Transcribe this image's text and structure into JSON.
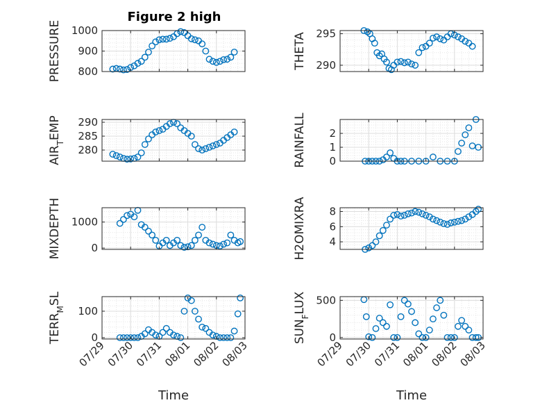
{
  "figure": {
    "title": "Figure 2 high",
    "marker_color": "#0072BD",
    "axis_color": "#262626"
  },
  "chart_data": [
    {
      "type": "scatter",
      "ylabel": "PRESSURE",
      "ylim": [
        800,
        1000
      ],
      "yticks": [
        800,
        900,
        1000
      ],
      "xlim": [
        "07/29",
        "08/03"
      ],
      "xticks": [
        "07/29",
        "07/30",
        "07/31",
        "08/01",
        "08/02",
        "08/03"
      ],
      "xtick_labels_visible": false,
      "grid": true,
      "x": [
        "07/29 09:00",
        "07/29 12:00",
        "07/29 15:00",
        "07/29 18:00",
        "07/29 21:00",
        "07/30 00:00",
        "07/30 03:00",
        "07/30 06:00",
        "07/30 09:00",
        "07/30 12:00",
        "07/30 15:00",
        "07/30 18:00",
        "07/30 21:00",
        "07/31 00:00",
        "07/31 03:00",
        "07/31 06:00",
        "07/31 09:00",
        "07/31 12:00",
        "07/31 15:00",
        "07/31 18:00",
        "07/31 21:00",
        "08/01 00:00",
        "08/01 03:00",
        "08/01 06:00",
        "08/01 09:00",
        "08/01 12:00",
        "08/01 15:00",
        "08/01 18:00",
        "08/01 21:00",
        "08/02 00:00",
        "08/02 03:00",
        "08/02 06:00",
        "08/02 09:00",
        "08/02 12:00",
        "08/02 15:00"
      ],
      "y": [
        812,
        815,
        812,
        808,
        810,
        820,
        828,
        840,
        850,
        870,
        895,
        925,
        945,
        955,
        958,
        958,
        962,
        970,
        985,
        995,
        990,
        975,
        960,
        955,
        950,
        935,
        900,
        860,
        850,
        845,
        850,
        858,
        860,
        870,
        895
      ]
    },
    {
      "type": "scatter",
      "ylabel": "THETA",
      "ylim": [
        289,
        295.5
      ],
      "yticks": [
        290,
        295
      ],
      "xlim": [
        "07/29",
        "08/03"
      ],
      "xticks": [
        "07/29",
        "07/30",
        "07/31",
        "08/01",
        "08/02",
        "08/03"
      ],
      "xtick_labels_visible": false,
      "grid": true,
      "x": [
        "07/29 20:00",
        "07/29 23:00",
        "07/30 01:00",
        "07/30 03:00",
        "07/30 05:00",
        "07/30 07:00",
        "07/30 09:00",
        "07/30 11:00",
        "07/30 13:00",
        "07/30 15:00",
        "07/30 17:00",
        "07/30 19:00",
        "07/30 21:00",
        "07/31 00:00",
        "07/31 03:00",
        "07/31 06:00",
        "07/31 09:00",
        "07/31 12:00",
        "07/31 15:00",
        "07/31 18:00",
        "07/31 21:00",
        "08/01 00:00",
        "08/01 03:00",
        "08/01 06:00",
        "08/01 09:00",
        "08/01 12:00",
        "08/01 15:00",
        "08/01 18:00",
        "08/01 21:00",
        "08/02 00:00",
        "08/02 03:00",
        "08/02 06:00",
        "08/02 09:00",
        "08/02 12:00",
        "08/02 15:00"
      ],
      "y": [
        295.5,
        295.3,
        295,
        294.2,
        293.5,
        292,
        291.5,
        291.8,
        291,
        290.5,
        289.5,
        289.3,
        290,
        290.5,
        290.6,
        290.4,
        290.5,
        290.2,
        290,
        292,
        292.8,
        293,
        293.5,
        294.3,
        294.5,
        294.2,
        294,
        294.5,
        295,
        294.8,
        294.5,
        294.2,
        293.8,
        293.5,
        293
      ]
    },
    {
      "type": "scatter",
      "ylabel": "AIR_TEMP",
      "ylabel_main": "AIR",
      "ylabel_sub": "T",
      "ylabel_rest": "EMP",
      "ylim": [
        276,
        291
      ],
      "yticks": [
        280,
        285,
        290
      ],
      "xlim": [
        "07/29",
        "08/03"
      ],
      "xticks": [
        "07/29",
        "07/30",
        "07/31",
        "08/01",
        "08/02",
        "08/03"
      ],
      "xtick_labels_visible": false,
      "grid": true,
      "x": [
        "07/29 09:00",
        "07/29 12:00",
        "07/29 15:00",
        "07/29 18:00",
        "07/29 21:00",
        "07/30 00:00",
        "07/30 03:00",
        "07/30 06:00",
        "07/30 09:00",
        "07/30 12:00",
        "07/30 15:00",
        "07/30 18:00",
        "07/30 21:00",
        "07/31 00:00",
        "07/31 03:00",
        "07/31 06:00",
        "07/31 09:00",
        "07/31 12:00",
        "07/31 15:00",
        "07/31 18:00",
        "07/31 21:00",
        "08/01 00:00",
        "08/01 03:00",
        "08/01 06:00",
        "08/01 09:00",
        "08/01 12:00",
        "08/01 15:00",
        "08/01 18:00",
        "08/01 21:00",
        "08/02 00:00",
        "08/02 03:00",
        "08/02 06:00",
        "08/02 09:00",
        "08/02 12:00",
        "08/02 15:00"
      ],
      "y": [
        278.5,
        278,
        277.5,
        277,
        276.7,
        276.8,
        277,
        277.5,
        279,
        282,
        284,
        285.5,
        286.5,
        287,
        287.5,
        288.5,
        289.5,
        290,
        289.5,
        288,
        287,
        286,
        285,
        282,
        280.5,
        280,
        280.5,
        281,
        281.5,
        282,
        282.5,
        283.5,
        284.5,
        285.5,
        286.5
      ]
    },
    {
      "type": "scatter",
      "ylabel": "RAINFALL",
      "ylim": [
        0,
        3
      ],
      "yticks": [
        0,
        1,
        2
      ],
      "xlim": [
        "07/29",
        "08/03"
      ],
      "xticks": [
        "07/29",
        "07/30",
        "07/31",
        "08/01",
        "08/02",
        "08/03"
      ],
      "xtick_labels_visible": false,
      "grid": true,
      "x": [
        "07/29 21:00",
        "07/30 00:00",
        "07/30 03:00",
        "07/30 06:00",
        "07/30 09:00",
        "07/30 12:00",
        "07/30 15:00",
        "07/30 18:00",
        "07/30 21:00",
        "07/31 00:00",
        "07/31 03:00",
        "07/31 06:00",
        "07/31 12:00",
        "07/31 18:00",
        "08/01 00:00",
        "08/01 06:00",
        "08/01 12:00",
        "08/01 18:00",
        "08/02 00:00",
        "08/02 03:00",
        "08/02 06:00",
        "08/02 09:00",
        "08/02 12:00",
        "08/02 15:00",
        "08/02 18:00",
        "08/02 20:00"
      ],
      "y": [
        0,
        0,
        0,
        0,
        0,
        0.1,
        0.3,
        0.6,
        0.2,
        0,
        0,
        0,
        0,
        0,
        0,
        0.3,
        0,
        0,
        0,
        0.7,
        1.3,
        1.9,
        2.4,
        1.1,
        3.0,
        1.0
      ]
    },
    {
      "type": "scatter",
      "ylabel": "MIXDEPTH",
      "ylim": [
        -50,
        1550
      ],
      "yticks": [
        0,
        1000
      ],
      "xlim": [
        "07/29",
        "08/03"
      ],
      "xticks": [
        "07/29",
        "07/30",
        "07/31",
        "08/01",
        "08/02",
        "08/03"
      ],
      "xtick_labels_visible": false,
      "grid": true,
      "x": [
        "07/29 15:00",
        "07/29 18:00",
        "07/29 21:00",
        "07/30 00:00",
        "07/30 03:00",
        "07/30 06:00",
        "07/30 09:00",
        "07/30 12:00",
        "07/30 15:00",
        "07/30 18:00",
        "07/30 21:00",
        "07/31 00:00",
        "07/31 03:00",
        "07/31 06:00",
        "07/31 09:00",
        "07/31 12:00",
        "07/31 15:00",
        "07/31 18:00",
        "07/31 21:00",
        "08/01 00:00",
        "08/01 03:00",
        "08/01 06:00",
        "08/01 09:00",
        "08/01 12:00",
        "08/01 15:00",
        "08/01 18:00",
        "08/01 21:00",
        "08/02 00:00",
        "08/02 03:00",
        "08/02 06:00",
        "08/02 09:00",
        "08/02 12:00",
        "08/02 15:00",
        "08/02 18:00",
        "08/02 20:00"
      ],
      "y": [
        950,
        1100,
        1250,
        1300,
        1200,
        1450,
        900,
        800,
        650,
        500,
        300,
        80,
        200,
        300,
        100,
        200,
        300,
        100,
        30,
        50,
        100,
        300,
        500,
        800,
        300,
        200,
        150,
        100,
        80,
        150,
        200,
        500,
        300,
        200,
        250
      ]
    },
    {
      "type": "scatter",
      "ylabel": "H2OMIXRA",
      "ylim": [
        3,
        8.5
      ],
      "yticks": [
        4,
        6,
        8
      ],
      "xlim": [
        "07/29",
        "08/03"
      ],
      "xticks": [
        "07/29",
        "07/30",
        "07/31",
        "08/01",
        "08/02",
        "08/03"
      ],
      "xtick_labels_visible": false,
      "grid": true,
      "x": [
        "07/29 21:00",
        "07/30 00:00",
        "07/30 03:00",
        "07/30 06:00",
        "07/30 09:00",
        "07/30 12:00",
        "07/30 15:00",
        "07/30 18:00",
        "07/30 21:00",
        "07/31 00:00",
        "07/31 03:00",
        "07/31 06:00",
        "07/31 09:00",
        "07/31 12:00",
        "07/31 15:00",
        "07/31 18:00",
        "07/31 21:00",
        "08/01 00:00",
        "08/01 03:00",
        "08/01 06:00",
        "08/01 09:00",
        "08/01 12:00",
        "08/01 15:00",
        "08/01 18:00",
        "08/01 21:00",
        "08/02 00:00",
        "08/02 03:00",
        "08/02 06:00",
        "08/02 09:00",
        "08/02 12:00",
        "08/02 15:00",
        "08/02 18:00",
        "08/02 20:00"
      ],
      "y": [
        3.0,
        3.2,
        3.5,
        4.0,
        4.8,
        5.5,
        6.2,
        7.0,
        7.5,
        7.6,
        7.4,
        7.5,
        7.7,
        7.8,
        8.0,
        7.9,
        7.7,
        7.5,
        7.3,
        7.0,
        6.8,
        6.6,
        6.4,
        6.3,
        6.5,
        6.6,
        6.7,
        6.8,
        7.0,
        7.3,
        7.6,
        8.0,
        8.3
      ]
    },
    {
      "type": "scatter",
      "ylabel": "TERR_MSL",
      "ylabel_main": "TERR",
      "ylabel_sub": "M",
      "ylabel_rest": "SL",
      "ylim": [
        -5,
        155
      ],
      "yticks": [
        0,
        100
      ],
      "xlim": [
        "07/29",
        "08/03"
      ],
      "xticks": [
        "07/29",
        "07/30",
        "07/31",
        "08/01",
        "08/02",
        "08/03"
      ],
      "xtick_labels": [
        "07/29",
        "07/30",
        "07/31",
        "08/01",
        "08/02",
        "08/03"
      ],
      "xlabel": "Time",
      "grid": true,
      "x": [
        "07/29 15:00",
        "07/29 18:00",
        "07/29 21:00",
        "07/30 00:00",
        "07/30 03:00",
        "07/30 06:00",
        "07/30 09:00",
        "07/30 12:00",
        "07/30 15:00",
        "07/30 18:00",
        "07/30 21:00",
        "07/31 00:00",
        "07/31 03:00",
        "07/31 06:00",
        "07/31 09:00",
        "07/31 12:00",
        "07/31 15:00",
        "07/31 18:00",
        "07/31 21:00",
        "08/01 00:00",
        "08/01 03:00",
        "08/01 06:00",
        "08/01 09:00",
        "08/01 12:00",
        "08/01 15:00",
        "08/01 18:00",
        "08/01 21:00",
        "08/02 00:00",
        "08/02 03:00",
        "08/02 06:00",
        "08/02 09:00",
        "08/02 12:00",
        "08/02 15:00",
        "08/02 18:00",
        "08/02 20:00"
      ],
      "y": [
        0,
        0,
        0,
        0,
        0,
        0,
        5,
        15,
        30,
        20,
        10,
        5,
        20,
        35,
        20,
        10,
        5,
        0,
        100,
        150,
        140,
        100,
        70,
        40,
        35,
        20,
        10,
        5,
        0,
        0,
        0,
        0,
        25,
        90,
        150
      ]
    },
    {
      "type": "scatter",
      "ylabel": "SUN_FLUX",
      "ylabel_main": "SUN",
      "ylabel_sub": "F",
      "ylabel_rest": "LUX",
      "ylim": [
        -20,
        550
      ],
      "yticks": [
        0,
        500
      ],
      "xlim": [
        "07/29",
        "08/03"
      ],
      "xticks": [
        "07/29",
        "07/30",
        "07/31",
        "08/01",
        "08/02",
        "08/03"
      ],
      "xtick_labels": [
        "07/29",
        "07/30",
        "07/31",
        "08/01",
        "08/02",
        "08/03"
      ],
      "xlabel": "Time",
      "grid": true,
      "x": [
        "07/29 20:00",
        "07/29 22:00",
        "07/30 00:00",
        "07/30 03:00",
        "07/30 06:00",
        "07/30 09:00",
        "07/30 12:00",
        "07/30 15:00",
        "07/30 18:00",
        "07/30 21:00",
        "07/31 00:00",
        "07/31 03:00",
        "07/31 06:00",
        "07/31 09:00",
        "07/31 12:00",
        "07/31 15:00",
        "07/31 18:00",
        "07/31 21:00",
        "08/01 00:00",
        "08/01 03:00",
        "08/01 06:00",
        "08/01 09:00",
        "08/01 12:00",
        "08/01 15:00",
        "08/01 18:00",
        "08/01 21:00",
        "08/02 00:00",
        "08/02 03:00",
        "08/02 06:00",
        "08/02 09:00",
        "08/02 12:00",
        "08/02 15:00",
        "08/02 18:00",
        "08/02 20:00"
      ],
      "y": [
        510,
        280,
        10,
        0,
        120,
        260,
        200,
        150,
        440,
        0,
        0,
        280,
        500,
        450,
        350,
        200,
        50,
        0,
        0,
        100,
        250,
        400,
        500,
        300,
        0,
        0,
        0,
        150,
        230,
        150,
        100,
        0,
        0,
        0
      ]
    }
  ]
}
